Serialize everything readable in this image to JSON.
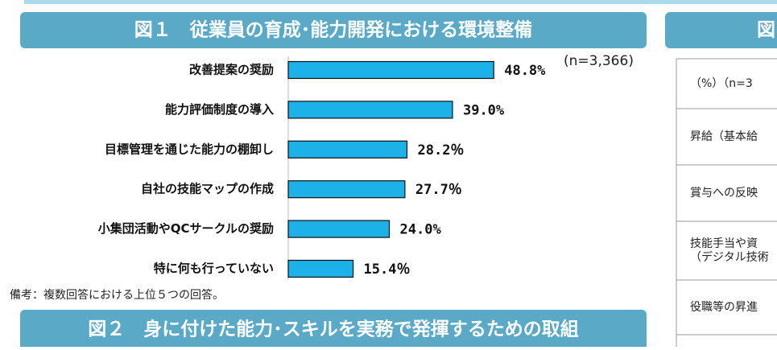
{
  "chart_data": {
    "type": "bar",
    "orientation": "horizontal",
    "title": "図１　従業員の育成･能力開発における環境整備",
    "subtitle": "(n=3,366)",
    "categories": [
      "改善提案の奨励",
      "能力評価制度の導入",
      "目標管理を通じた能力の棚卸し",
      "自社の技能マップの作成",
      "小集団活動やQCサークルの奨励",
      "特に何も行っていない"
    ],
    "values": [
      48.8,
      39.0,
      28.2,
      27.7,
      24.0,
      15.4
    ],
    "value_labels": [
      "48.8%",
      "39.0%",
      "28.2％",
      "27.7％",
      "24.0%",
      "15.4％"
    ],
    "color": "#1cb1e9"
  },
  "footnote": "備考：複数回答における上位５つの回答。",
  "figure2_title": "図２　身に付けた能力･スキルを実務で発揮するための取組",
  "figure3": {
    "title": "図",
    "rows": [
      "（%）（n=3",
      "昇給（基本給",
      "賞与への反映",
      "技能手当や資\n（デジタル技術",
      "役職等の昇進"
    ]
  }
}
